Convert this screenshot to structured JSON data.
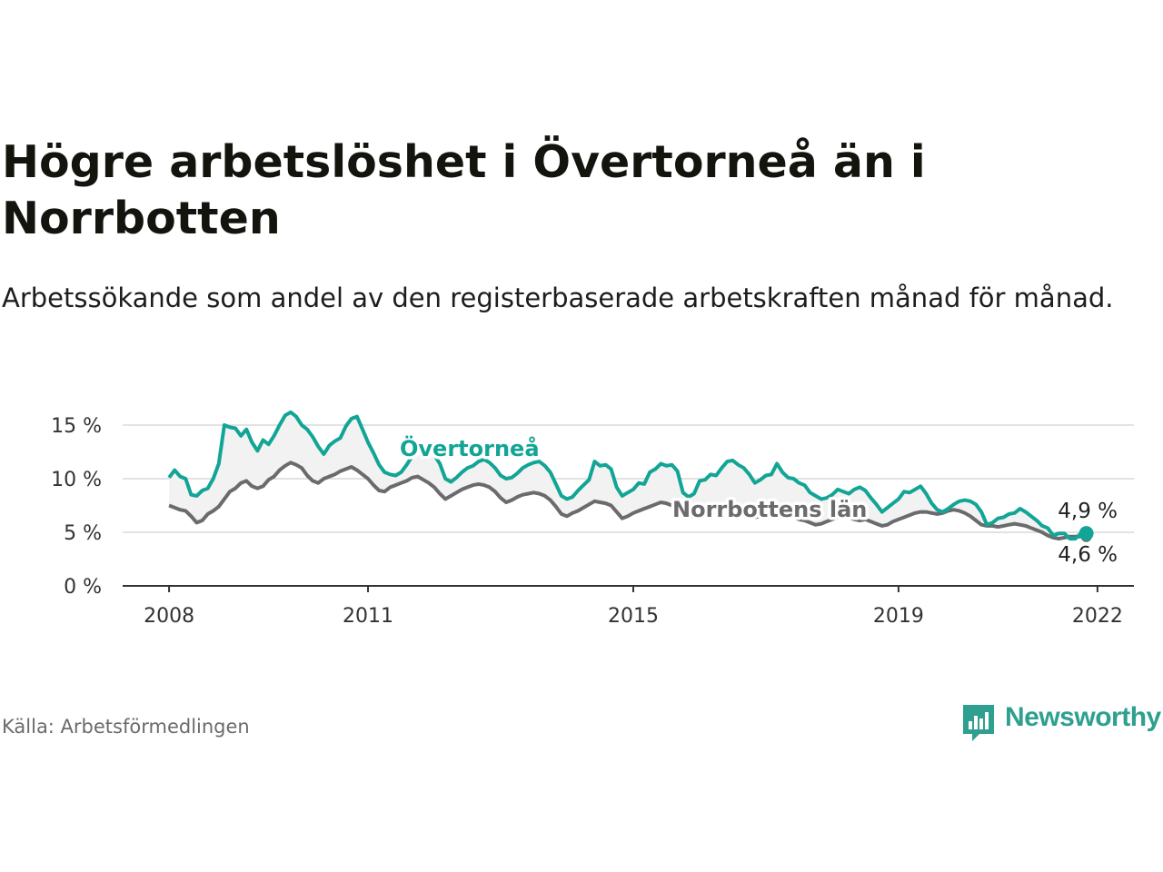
{
  "title": "Högre arbetslöshet i Övertorneå än i Norrbotten",
  "subtitle": "Arbetssökande som andel av den registerbaserade arbetskraften månad för månad.",
  "source": "Källa: Arbetsförmedlingen",
  "brand": "Newsworthy",
  "colors": {
    "overtornea": "#12a596",
    "norrbotten": "#6b6a6d",
    "band": "#f2f2f2",
    "grid": "#d9d9d9",
    "brand": "#2fa08f"
  },
  "chart_data": {
    "type": "line",
    "title": "Högre arbetslöshet i Övertorneå än i Norrbotten",
    "xlabel": "",
    "ylabel": "",
    "x_start": 2008.0,
    "x_step_months": 1,
    "xlim": [
      2007.3,
      2022.55
    ],
    "ylim": [
      0,
      15
    ],
    "yticks": [
      0,
      5,
      10,
      15
    ],
    "ytick_labels": [
      "0 %",
      "5 %",
      "10 %",
      "15 %"
    ],
    "xticks": [
      2008,
      2011,
      2015,
      2019,
      2022
    ],
    "xtick_labels": [
      "2008",
      "2011",
      "2015",
      "2019",
      "2022"
    ],
    "grid": true,
    "series": [
      {
        "name": "Övertorneå",
        "label": "Övertorneå",
        "last_label": "4,9 %",
        "values": [
          10.1,
          10.8,
          10.2,
          10.0,
          8.5,
          8.4,
          8.9,
          9.1,
          10.0,
          11.4,
          15.0,
          14.8,
          14.7,
          14.0,
          14.6,
          13.4,
          12.6,
          13.6,
          13.2,
          14.0,
          15.0,
          15.9,
          16.2,
          15.8,
          15.0,
          14.6,
          13.9,
          13.0,
          12.3,
          13.1,
          13.5,
          13.8,
          14.9,
          15.6,
          15.8,
          14.6,
          13.4,
          12.4,
          11.3,
          10.6,
          10.4,
          10.3,
          10.6,
          11.3,
          12.1,
          12.9,
          13.2,
          13.1,
          12.2,
          11.4,
          10.0,
          9.7,
          10.1,
          10.6,
          11.0,
          11.2,
          11.6,
          11.8,
          11.5,
          11.0,
          10.3,
          10.0,
          10.1,
          10.5,
          11.0,
          11.3,
          11.5,
          11.6,
          11.2,
          10.6,
          9.5,
          8.4,
          8.1,
          8.3,
          8.9,
          9.4,
          9.9,
          11.6,
          11.2,
          11.3,
          10.9,
          9.2,
          8.4,
          8.7,
          9.0,
          9.6,
          9.5,
          10.6,
          10.9,
          11.4,
          11.2,
          11.3,
          10.7,
          8.7,
          8.3,
          8.6,
          9.8,
          9.9,
          10.4,
          10.3,
          11.0,
          11.6,
          11.7,
          11.3,
          11.0,
          10.4,
          9.6,
          9.9,
          10.3,
          10.4,
          11.4,
          10.6,
          10.1,
          10.0,
          9.6,
          9.4,
          8.7,
          8.4,
          8.1,
          8.2,
          8.5,
          9.0,
          8.8,
          8.6,
          9.0,
          9.2,
          8.9,
          8.2,
          7.6,
          6.9,
          7.3,
          7.7,
          8.1,
          8.8,
          8.7,
          9.0,
          9.3,
          8.6,
          7.7,
          7.1,
          6.9,
          7.2,
          7.6,
          7.9,
          8.0,
          7.9,
          7.6,
          6.9,
          5.7,
          5.9,
          6.3,
          6.4,
          6.7,
          6.8,
          7.2,
          6.9,
          6.5,
          6.1,
          5.6,
          5.4,
          4.7,
          4.9,
          4.9,
          4.4,
          4.4,
          4.9
        ]
      },
      {
        "name": "Norrbottens län",
        "label": "Norrbottens län",
        "last_label": "4,6 %",
        "values": [
          7.5,
          7.3,
          7.1,
          7.0,
          6.5,
          5.9,
          6.1,
          6.7,
          7.0,
          7.4,
          8.1,
          8.8,
          9.1,
          9.6,
          9.8,
          9.3,
          9.1,
          9.3,
          9.9,
          10.2,
          10.8,
          11.2,
          11.5,
          11.3,
          11.0,
          10.3,
          9.8,
          9.6,
          10.0,
          10.2,
          10.4,
          10.7,
          10.9,
          11.1,
          10.8,
          10.4,
          10.0,
          9.4,
          8.9,
          8.8,
          9.2,
          9.4,
          9.6,
          9.8,
          10.1,
          10.2,
          9.9,
          9.6,
          9.2,
          8.6,
          8.1,
          8.4,
          8.7,
          9.0,
          9.2,
          9.4,
          9.5,
          9.4,
          9.2,
          8.8,
          8.2,
          7.8,
          8.0,
          8.3,
          8.5,
          8.6,
          8.7,
          8.6,
          8.4,
          8.0,
          7.4,
          6.7,
          6.5,
          6.8,
          7.0,
          7.3,
          7.6,
          7.9,
          7.8,
          7.7,
          7.5,
          6.9,
          6.3,
          6.5,
          6.8,
          7.0,
          7.2,
          7.4,
          7.6,
          7.8,
          7.7,
          7.5,
          7.2,
          6.8,
          6.4,
          6.5,
          6.9,
          7.0,
          7.2,
          7.3,
          7.4,
          7.6,
          7.6,
          7.4,
          7.1,
          6.7,
          6.4,
          6.5,
          6.7,
          6.8,
          6.9,
          6.8,
          6.6,
          6.4,
          6.2,
          6.1,
          5.9,
          5.7,
          5.8,
          6.0,
          6.2,
          6.4,
          6.5,
          6.4,
          6.2,
          6.1,
          6.2,
          6.0,
          5.8,
          5.6,
          5.7,
          6.0,
          6.2,
          6.4,
          6.6,
          6.8,
          6.9,
          6.9,
          6.8,
          6.7,
          6.8,
          7.0,
          7.1,
          7.0,
          6.8,
          6.5,
          6.1,
          5.7,
          5.6,
          5.6,
          5.5,
          5.6,
          5.7,
          5.8,
          5.7,
          5.6,
          5.4,
          5.2,
          5.0,
          4.7,
          4.5,
          4.4,
          4.5,
          4.6,
          4.6,
          4.6
        ]
      }
    ]
  }
}
